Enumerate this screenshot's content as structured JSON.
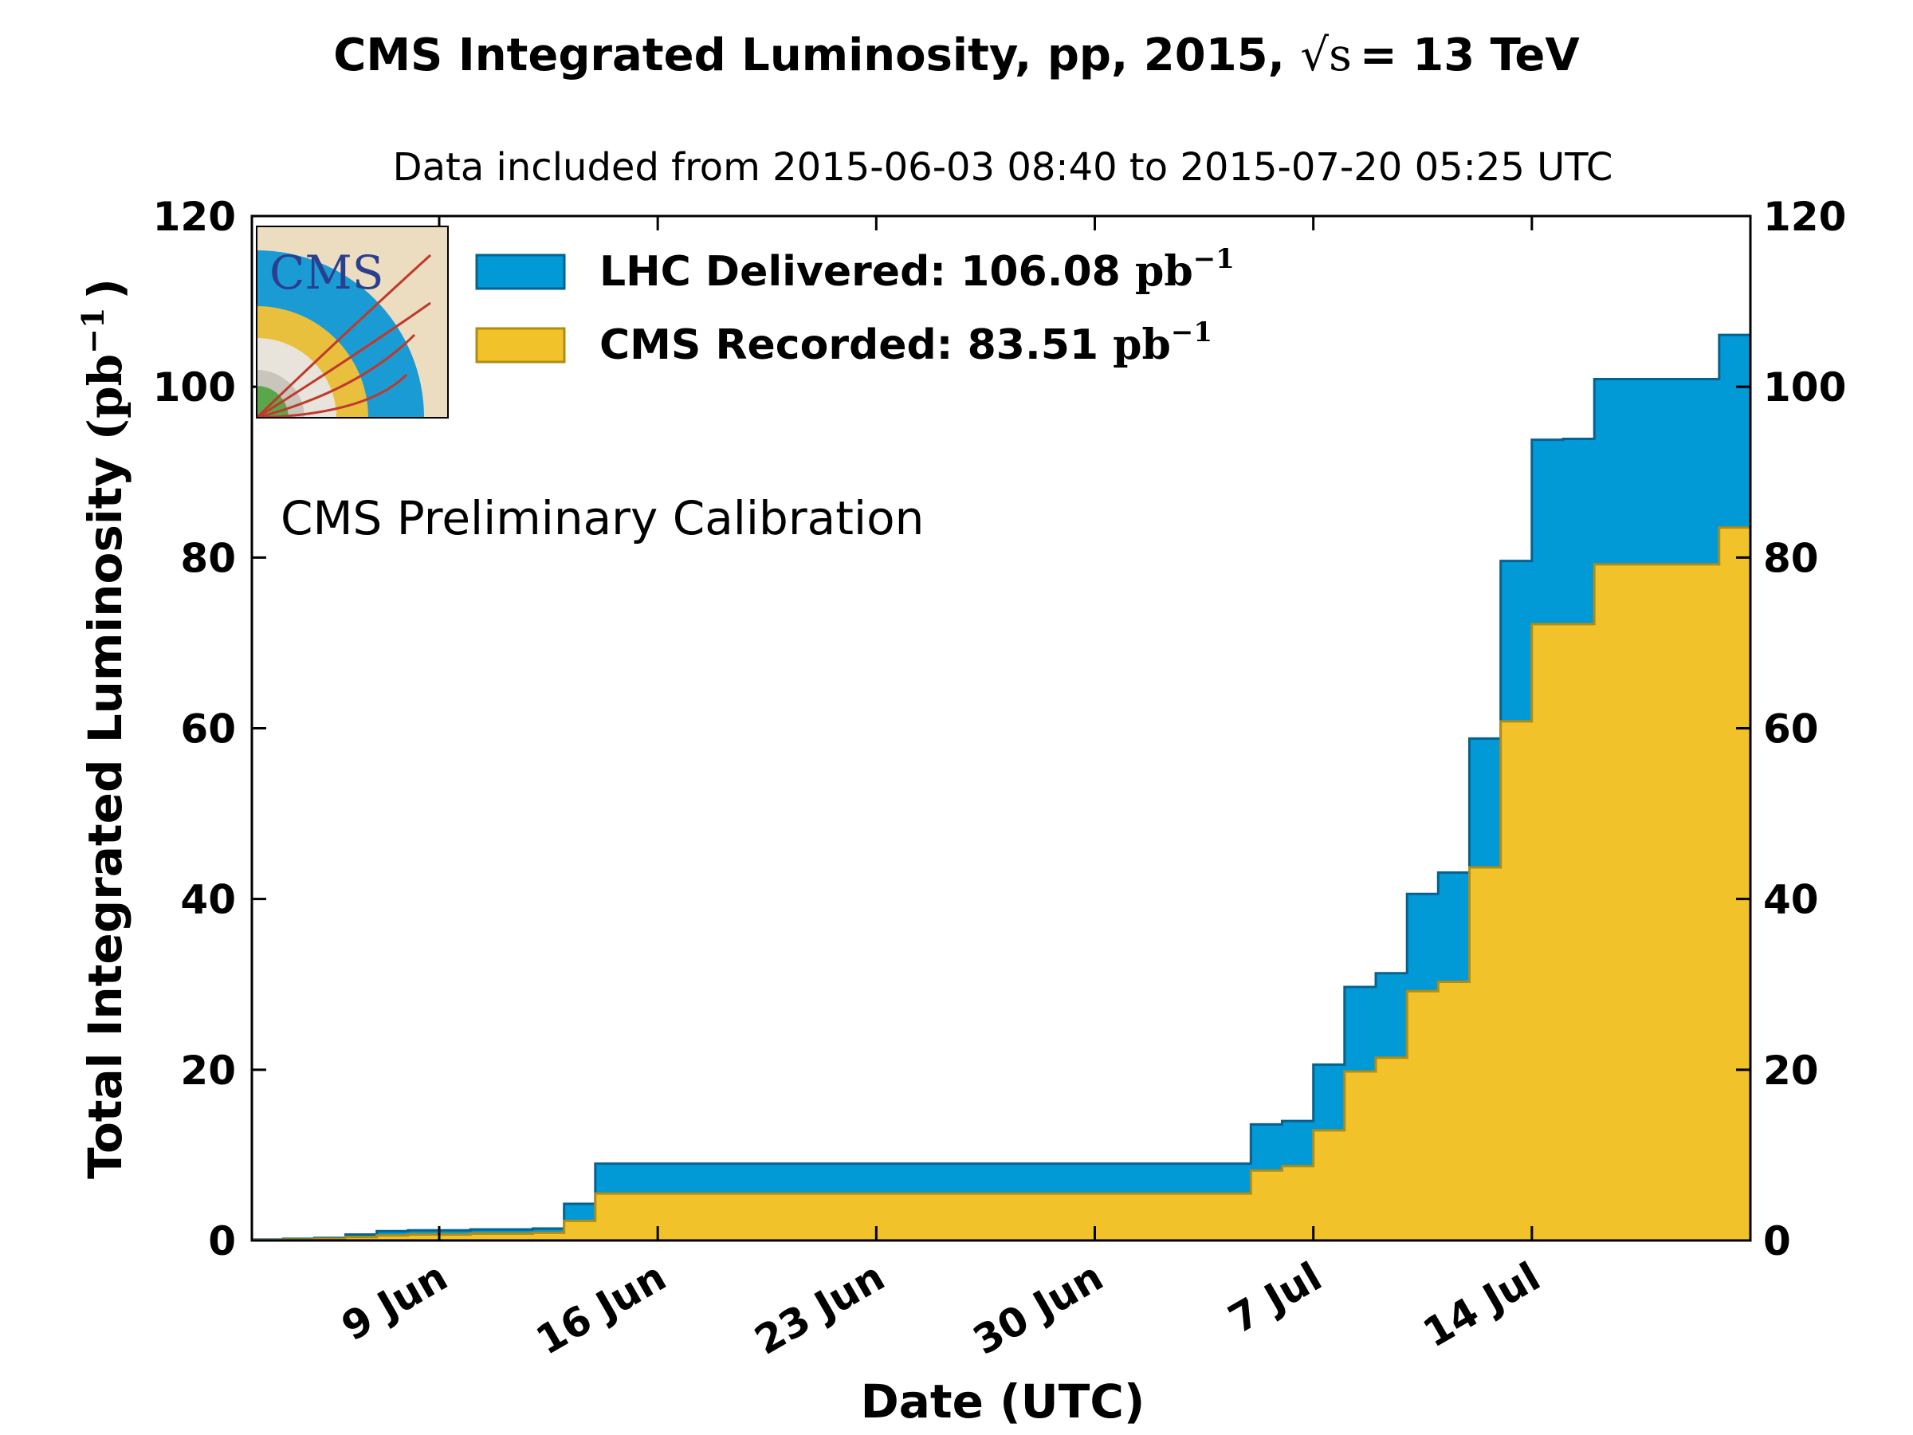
{
  "chart_data": {
    "type": "area",
    "title_main": "CMS Integrated Luminosity, pp, 2015, ",
    "title_sqrt_s": "√s",
    "title_equals": "= 13 TeV",
    "subtitle": "Data included from 2015-06-03 08:40 to 2015-07-20 05:25 UTC",
    "xlabel": "Date (UTC)",
    "ylabel_text": "Total Integrated Luminosity ",
    "ylabel_unit": "(pb",
    "ylabel_exp": "−1",
    "ylabel_close": ")",
    "annotation": "CMS Preliminary Calibration",
    "x_start": "2015-06-03",
    "x_end": "2015-07-21",
    "ylim": [
      0,
      120
    ],
    "y_ticks": [
      "0",
      "20",
      "40",
      "60",
      "80",
      "100",
      "120"
    ],
    "x_ticks": [
      {
        "label": "9 Jun",
        "date": "2015-06-09"
      },
      {
        "label": "16 Jun",
        "date": "2015-06-16"
      },
      {
        "label": "23 Jun",
        "date": "2015-06-23"
      },
      {
        "label": "30 Jun",
        "date": "2015-06-30"
      },
      {
        "label": "7 Jul",
        "date": "2015-07-07"
      },
      {
        "label": "14 Jul",
        "date": "2015-07-14"
      }
    ],
    "dates": [
      "2015-06-03",
      "2015-06-04",
      "2015-06-05",
      "2015-06-06",
      "2015-06-07",
      "2015-06-08",
      "2015-06-09",
      "2015-06-10",
      "2015-06-11",
      "2015-06-12",
      "2015-06-13",
      "2015-06-14",
      "2015-06-15",
      "2015-06-16",
      "2015-06-17",
      "2015-06-18",
      "2015-06-19",
      "2015-06-20",
      "2015-06-21",
      "2015-06-22",
      "2015-06-23",
      "2015-06-24",
      "2015-06-25",
      "2015-06-26",
      "2015-06-27",
      "2015-06-28",
      "2015-06-29",
      "2015-06-30",
      "2015-07-01",
      "2015-07-02",
      "2015-07-03",
      "2015-07-04",
      "2015-07-05",
      "2015-07-06",
      "2015-07-07",
      "2015-07-08",
      "2015-07-09",
      "2015-07-10",
      "2015-07-11",
      "2015-07-12",
      "2015-07-13",
      "2015-07-14",
      "2015-07-15",
      "2015-07-16",
      "2015-07-17",
      "2015-07-18",
      "2015-07-19",
      "2015-07-20"
    ],
    "series": [
      {
        "name": "LHC Delivered",
        "legend_label": "LHC Delivered: 106.08 ",
        "color": "#0199d6",
        "edge": "#05628f",
        "values": [
          0.1,
          0.2,
          0.3,
          0.7,
          1.1,
          1.2,
          1.2,
          1.3,
          1.3,
          1.4,
          4.3,
          9.0,
          9.0,
          9.0,
          9.0,
          9.0,
          9.0,
          9.0,
          9.0,
          9.0,
          9.0,
          9.0,
          9.0,
          9.0,
          9.0,
          9.0,
          9.0,
          9.0,
          9.0,
          9.0,
          9.0,
          9.0,
          13.6,
          14.0,
          20.6,
          29.7,
          31.3,
          40.6,
          43.1,
          58.8,
          79.6,
          93.8,
          93.9,
          100.9,
          100.9,
          100.9,
          100.9,
          106.08
        ]
      },
      {
        "name": "CMS Recorded",
        "legend_label": "CMS Recorded: 83.51 ",
        "color": "#f1c229",
        "edge": "#b28b13",
        "values": [
          0.05,
          0.1,
          0.2,
          0.4,
          0.6,
          0.7,
          0.7,
          0.8,
          0.8,
          0.9,
          2.3,
          5.5,
          5.5,
          5.5,
          5.5,
          5.5,
          5.5,
          5.5,
          5.5,
          5.5,
          5.5,
          5.5,
          5.5,
          5.5,
          5.5,
          5.5,
          5.5,
          5.5,
          5.5,
          5.5,
          5.5,
          5.5,
          8.2,
          8.7,
          12.9,
          19.8,
          21.4,
          29.2,
          30.3,
          43.7,
          60.8,
          72.2,
          72.2,
          79.2,
          79.2,
          79.2,
          79.2,
          83.51
        ]
      }
    ],
    "legend_unit": "pb",
    "legend_unit_exp": "−1",
    "legend_position": "top-left",
    "grid": false,
    "colors": {
      "annotation": "#ff0000"
    }
  },
  "logo": {
    "text": "CMS"
  }
}
